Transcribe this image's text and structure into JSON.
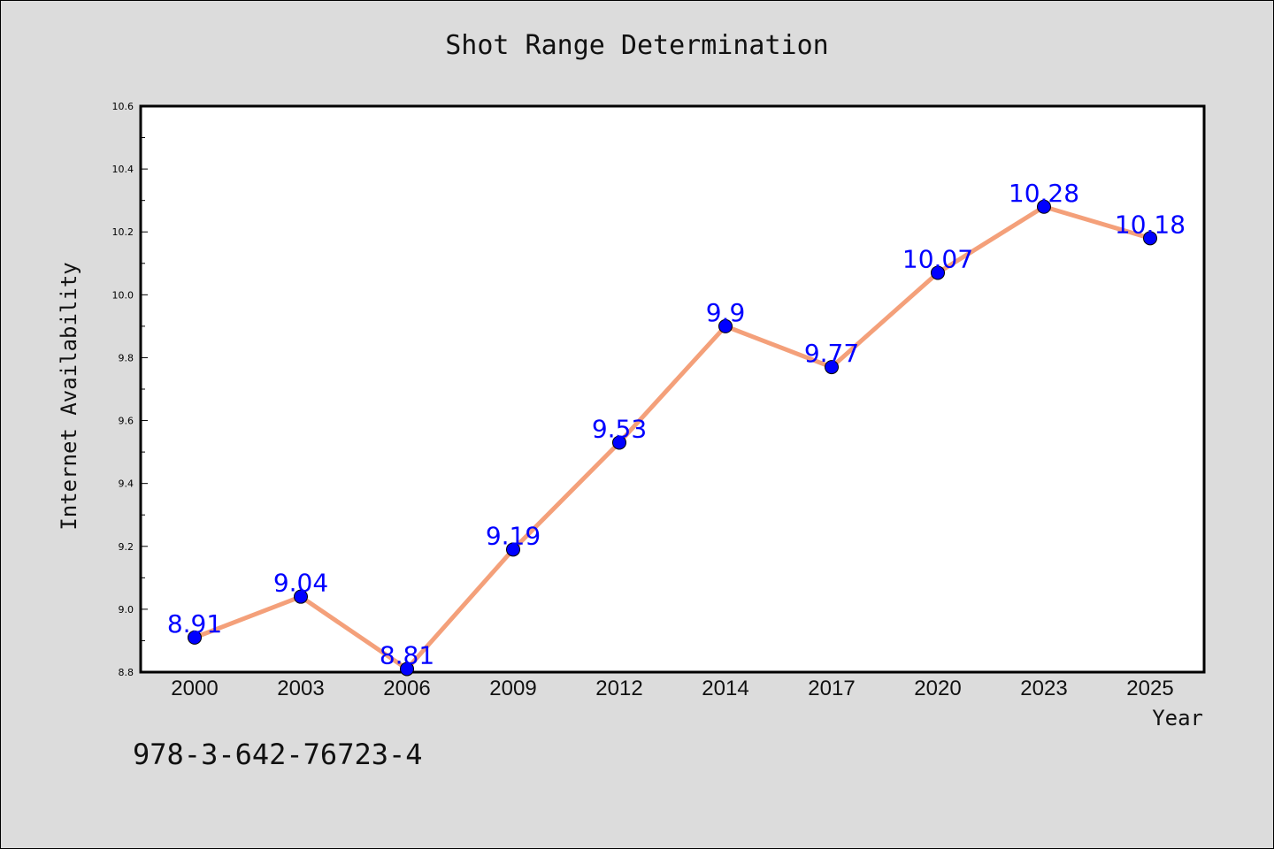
{
  "chart_data": {
    "type": "line",
    "title": "Shot Range Determination",
    "xlabel": "Year",
    "ylabel": "Internet Availability",
    "categories": [
      "2000",
      "2003",
      "2006",
      "2009",
      "2012",
      "2014",
      "2017",
      "2020",
      "2023",
      "2025"
    ],
    "series": [
      {
        "values": [
          8.91,
          9.04,
          8.81,
          9.19,
          9.53,
          9.9,
          9.77,
          10.07,
          10.28,
          10.18
        ],
        "line_color": "#f4a07a",
        "marker_color": "#0000ff"
      }
    ],
    "ylim": [
      8.8,
      10.6
    ],
    "yticks": [
      "8.8",
      "9.0",
      "9.2",
      "9.4",
      "9.6",
      "9.8",
      "10.0",
      "10.2",
      "10.4",
      "10.6"
    ],
    "grid": false,
    "data_labels": true
  },
  "annotation": "978-3-642-76723-4",
  "colors": {
    "background": "#dcdcdc",
    "plot_background": "#ffffff",
    "label_color": "#0000ff"
  }
}
